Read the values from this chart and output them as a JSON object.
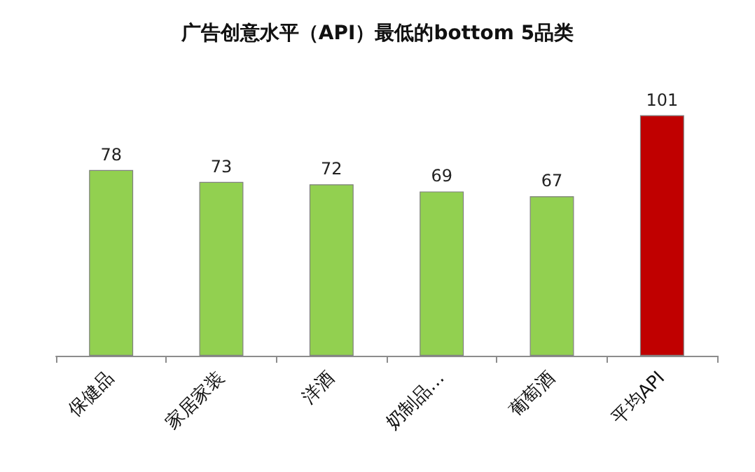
{
  "chart_data": {
    "type": "bar",
    "title": "广告创意水平（API）最低的bottom 5品类",
    "categories": [
      "保健品",
      "家居家装",
      "洋酒",
      "奶制品…",
      "葡萄酒",
      "平均API"
    ],
    "values": [
      78,
      73,
      72,
      69,
      67,
      101
    ],
    "colors": [
      "#92d050",
      "#92d050",
      "#92d050",
      "#92d050",
      "#92d050",
      "#c00000"
    ],
    "data_labels": true
  }
}
